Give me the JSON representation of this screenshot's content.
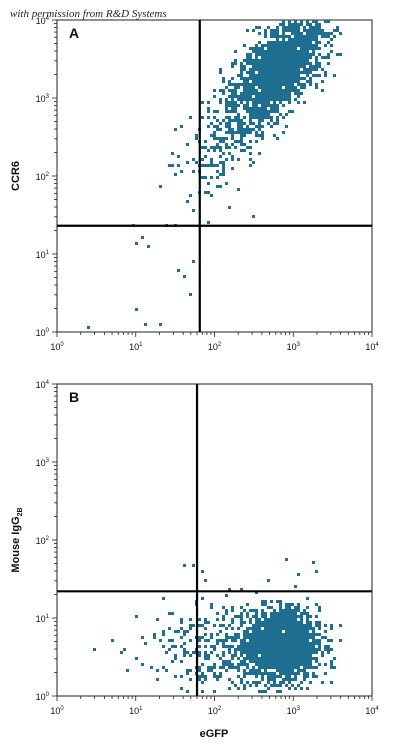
{
  "watermark": "with permission from R&D Systems",
  "colors": {
    "dots": "#1f6f93",
    "gate": "#000000",
    "frame": "#222222"
  },
  "chart_data": [
    {
      "type": "scatter",
      "panel_label": "A",
      "title": "",
      "xlabel": "",
      "ylabel": "CCR6",
      "xscale": "log",
      "yscale": "log",
      "xlim": [
        1,
        10000
      ],
      "ylim": [
        1,
        10000
      ],
      "xticks": [
        1,
        10,
        100,
        1000,
        10000
      ],
      "yticks": [
        1,
        10,
        100,
        1000,
        10000
      ],
      "quadrant_gate": {
        "x": 65,
        "y": 23
      },
      "populations": [
        {
          "center": [
            700,
            2500
          ],
          "spread": [
            0.28,
            0.25
          ],
          "count": 1500
        },
        {
          "center": [
            250,
            600
          ],
          "spread": [
            0.3,
            0.3
          ],
          "count": 300
        },
        {
          "center": [
            80,
            150
          ],
          "spread": [
            0.3,
            0.28
          ],
          "count": 80
        }
      ],
      "sparse_events": [
        [
          12,
          17
        ],
        [
          10,
          14
        ],
        [
          15,
          12
        ],
        [
          40,
          5
        ],
        [
          50,
          3
        ],
        [
          35,
          6
        ],
        [
          10,
          2
        ],
        [
          2.5,
          1.1
        ],
        [
          13,
          1.2
        ],
        [
          20,
          1.3
        ],
        [
          55,
          8
        ],
        [
          150,
          40
        ],
        [
          300,
          30
        ]
      ]
    },
    {
      "type": "scatter",
      "panel_label": "B",
      "title": "",
      "xlabel": "eGFP",
      "ylabel": "Mouse IgG2B",
      "ylabel_main": "Mouse IgG",
      "ylabel_sub": "2B",
      "xscale": "log",
      "yscale": "log",
      "xlim": [
        1,
        10000
      ],
      "ylim": [
        1,
        10000
      ],
      "xticks": [
        1,
        10,
        100,
        1000,
        10000
      ],
      "yticks": [
        1,
        10,
        100,
        1000,
        10000
      ],
      "quadrant_gate": {
        "x": 60,
        "y": 22
      },
      "populations": [
        {
          "center": [
            750,
            4.5
          ],
          "spread": [
            0.22,
            0.22
          ],
          "count": 1700
        },
        {
          "center": [
            250,
            4.0
          ],
          "spread": [
            0.4,
            0.3
          ],
          "count": 350
        },
        {
          "center": [
            40,
            4.0
          ],
          "spread": [
            0.35,
            0.3
          ],
          "count": 100
        }
      ],
      "sparse_events": [
        [
          800,
          55
        ],
        [
          500,
          30
        ],
        [
          1200,
          35
        ],
        [
          70,
          40
        ],
        [
          1100,
          14
        ],
        [
          3000,
          8
        ],
        [
          4000,
          5
        ],
        [
          5,
          5
        ],
        [
          7,
          4
        ],
        [
          3,
          4
        ],
        [
          1800,
          50
        ],
        [
          80,
          30
        ]
      ]
    }
  ]
}
